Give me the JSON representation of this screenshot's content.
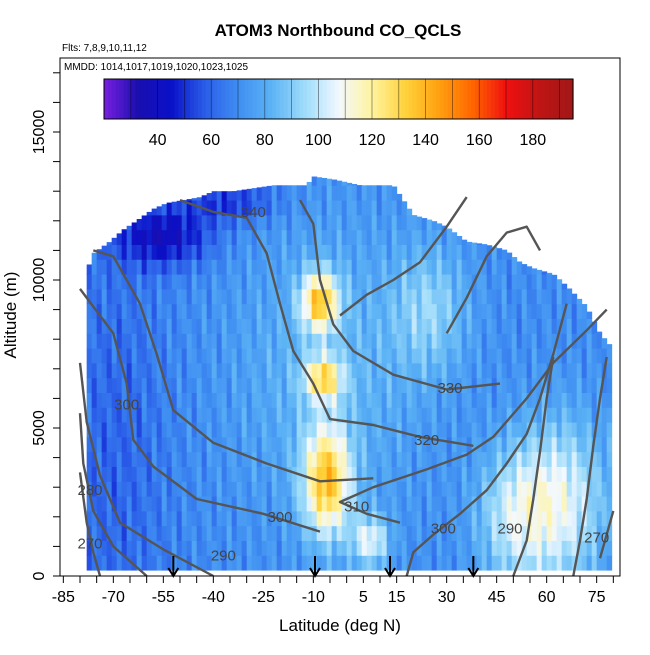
{
  "chart_data": {
    "type": "heatmap",
    "title": "ATOM3 Northbound CO_QCLS",
    "flights_note": "Flts: 7,8,9,10,11,12",
    "dates_note": "MMDD: 1014,1017,1019,1020,1023,1025",
    "xlabel": "Latitude (deg N)",
    "ylabel": "Altitude (m)",
    "xlim": [
      -86,
      82
    ],
    "ylim": [
      0,
      17500
    ],
    "x_ticks": [
      -85,
      -70,
      -55,
      -40,
      -25,
      -10,
      5,
      15,
      30,
      45,
      60,
      75
    ],
    "y_ticks": [
      0,
      5000,
      10000,
      15000
    ],
    "colorbar": {
      "range": [
        20,
        195
      ],
      "ticks": [
        40,
        60,
        80,
        100,
        120,
        140,
        160,
        180
      ],
      "colors": [
        "#7a1fe0",
        "#1a0fb0",
        "#0a10c8",
        "#2a5ce8",
        "#3f8ef2",
        "#5cb3f5",
        "#9fdcfa",
        "#f2f8ff",
        "#fff3a0",
        "#ffd23a",
        "#ffa010",
        "#ff6600",
        "#f01010",
        "#c01414",
        "#a01818"
      ]
    },
    "contour_labels": [
      {
        "text": "340",
        "lat": -28,
        "alt": 12300
      },
      {
        "text": "330",
        "lat": 31,
        "alt": 6350
      },
      {
        "text": "320",
        "lat": 24,
        "alt": 4600
      },
      {
        "text": "310",
        "lat": 3,
        "alt": 2350
      },
      {
        "text": "300",
        "lat": -66,
        "alt": 5800
      },
      {
        "text": "300",
        "lat": -20,
        "alt": 2000
      },
      {
        "text": "300",
        "lat": 29,
        "alt": 1600
      },
      {
        "text": "290",
        "lat": -37,
        "alt": 700
      },
      {
        "text": "290",
        "lat": 49,
        "alt": 1600
      },
      {
        "text": "280",
        "lat": -77,
        "alt": 2900
      },
      {
        "text": "270",
        "lat": -77,
        "alt": 1100
      },
      {
        "text": "270",
        "lat": 75,
        "alt": 1300
      }
    ],
    "launch_markers_lat": [
      -52,
      -9.5,
      13,
      38
    ]
  }
}
